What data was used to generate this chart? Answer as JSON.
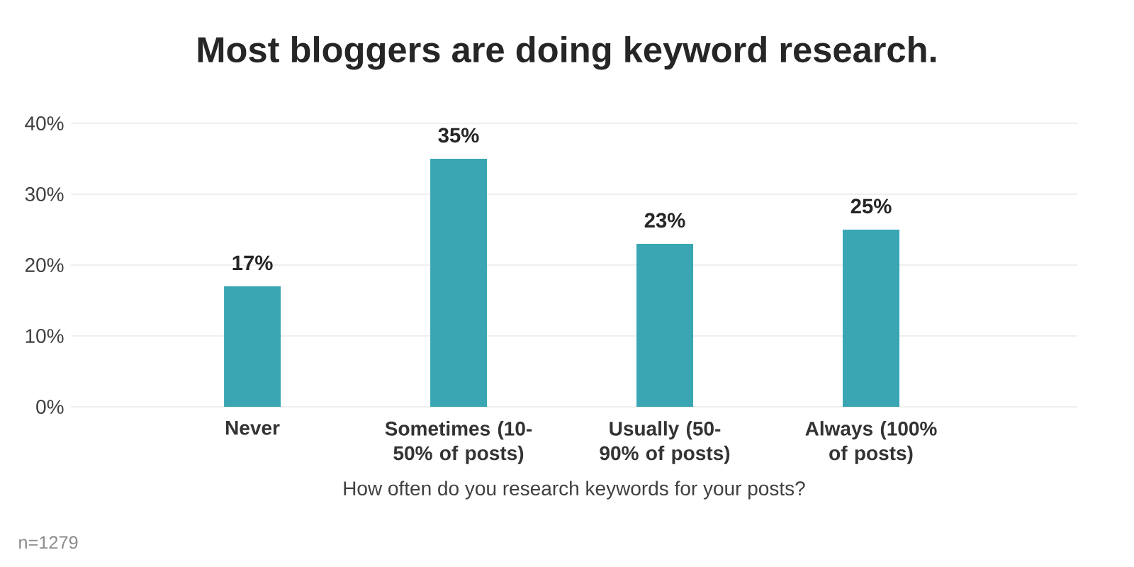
{
  "chart_data": {
    "type": "bar",
    "title": "Most bloggers are doing keyword research.",
    "xlabel": "How often do you research keywords for your posts?",
    "categories": [
      "Never",
      "Sometimes (10-50% of posts)",
      "Usually (50-90% of posts)",
      "Always (100% of posts)"
    ],
    "values": [
      17,
      35,
      23,
      25
    ],
    "value_labels": [
      "17%",
      "35%",
      "23%",
      "25%"
    ],
    "color": "#3aa6b3",
    "ylim": [
      0,
      40
    ],
    "yticks": [
      {
        "value": 0,
        "label": "0%"
      },
      {
        "value": 10,
        "label": "10%"
      },
      {
        "value": 20,
        "label": "20%"
      },
      {
        "value": 30,
        "label": "30%"
      },
      {
        "value": 40,
        "label": "40%"
      }
    ],
    "grid": "y",
    "annotations": [
      "n=1279"
    ]
  }
}
